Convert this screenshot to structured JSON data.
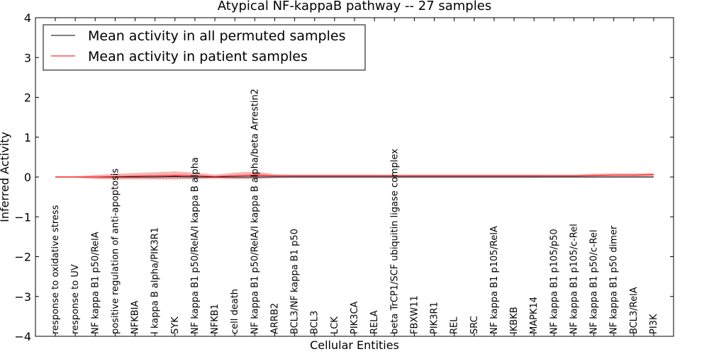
{
  "chart_data": {
    "type": "line",
    "title": "Atypical NF-kappaB pathway -- 27 samples",
    "xlabel": "Cellular Entities",
    "ylabel": "Inferred Activity",
    "ylim": [
      -4,
      4
    ],
    "yticks": [
      -4,
      -3,
      -2,
      -1,
      0,
      1,
      2,
      3,
      4
    ],
    "ytick_labels": [
      "−4",
      "−3",
      "−2",
      "−1",
      "0",
      "1",
      "2",
      "3",
      "4"
    ],
    "legend_position": "top-left",
    "categories": [
      "response to oxidative stress",
      "response to UV",
      "NF kappa B1 p50/RelA",
      "positive regulation of anti-apoptosis",
      "NFKBIA",
      "I kappa B alpha/PIK3R1",
      "SYK",
      "NF kappa B1 p50/RelA/I kappa B alpha",
      "NFKB1",
      "cell death",
      "NF kappa B1 p50/RelA/I kappa B alpha/beta Arrestin2",
      "ARRB2",
      "BCL3/NF kappa B1 p50",
      "BCL3",
      "LCK",
      "PIK3CA",
      "RELA",
      "beta TrCP1/SCF ubiquitin ligase complex",
      "FBXW11",
      "PIK3R1",
      "REL",
      "SRC",
      "NF kappa B1 p105/RelA",
      "IKBKB",
      "MAPK14",
      "NF kappa B1 p105/p50",
      "NF kappa B1 p105/c-Rel",
      "NF kappa B1 p50/c-Rel",
      "NF kappa B1 p50 dimer",
      "BCL3/RelA",
      "PI3K"
    ],
    "series": [
      {
        "name": "Mean activity in all permuted samples",
        "color": "#000000",
        "values": [
          0.0,
          0.0,
          0.0,
          0.0,
          0.0,
          0.0,
          0.01,
          0.0,
          0.0,
          0.0,
          0.0,
          0.0,
          0.0,
          0.0,
          0.0,
          0.0,
          0.0,
          0.0,
          0.0,
          0.0,
          0.0,
          0.0,
          0.0,
          0.0,
          0.0,
          0.0,
          0.0,
          0.0,
          0.0,
          0.0,
          0.0
        ],
        "spread": [
          0.01,
          0.01,
          0.02,
          0.03,
          0.04,
          0.05,
          0.06,
          0.05,
          0.03,
          0.05,
          0.06,
          0.04,
          0.03,
          0.03,
          0.03,
          0.03,
          0.03,
          0.03,
          0.03,
          0.03,
          0.03,
          0.03,
          0.03,
          0.03,
          0.03,
          0.02,
          0.02,
          0.02,
          0.02,
          0.02,
          0.02
        ]
      },
      {
        "name": "Mean activity in patient samples",
        "color": "#ff0000",
        "values": [
          0.0,
          0.0,
          0.0,
          0.01,
          0.02,
          0.03,
          0.04,
          0.03,
          0.01,
          0.03,
          0.05,
          0.03,
          0.03,
          0.03,
          0.03,
          0.03,
          0.03,
          0.03,
          0.03,
          0.03,
          0.03,
          0.03,
          0.03,
          0.03,
          0.03,
          0.03,
          0.03,
          0.04,
          0.05,
          0.05,
          0.06
        ],
        "spread": [
          0.02,
          0.02,
          0.05,
          0.07,
          0.08,
          0.09,
          0.1,
          0.08,
          0.05,
          0.08,
          0.09,
          0.04,
          0.03,
          0.03,
          0.03,
          0.03,
          0.03,
          0.03,
          0.03,
          0.03,
          0.03,
          0.03,
          0.03,
          0.03,
          0.03,
          0.03,
          0.03,
          0.04,
          0.04,
          0.04,
          0.04
        ]
      }
    ],
    "reference_line": {
      "value": 0,
      "style": "dotted"
    }
  }
}
